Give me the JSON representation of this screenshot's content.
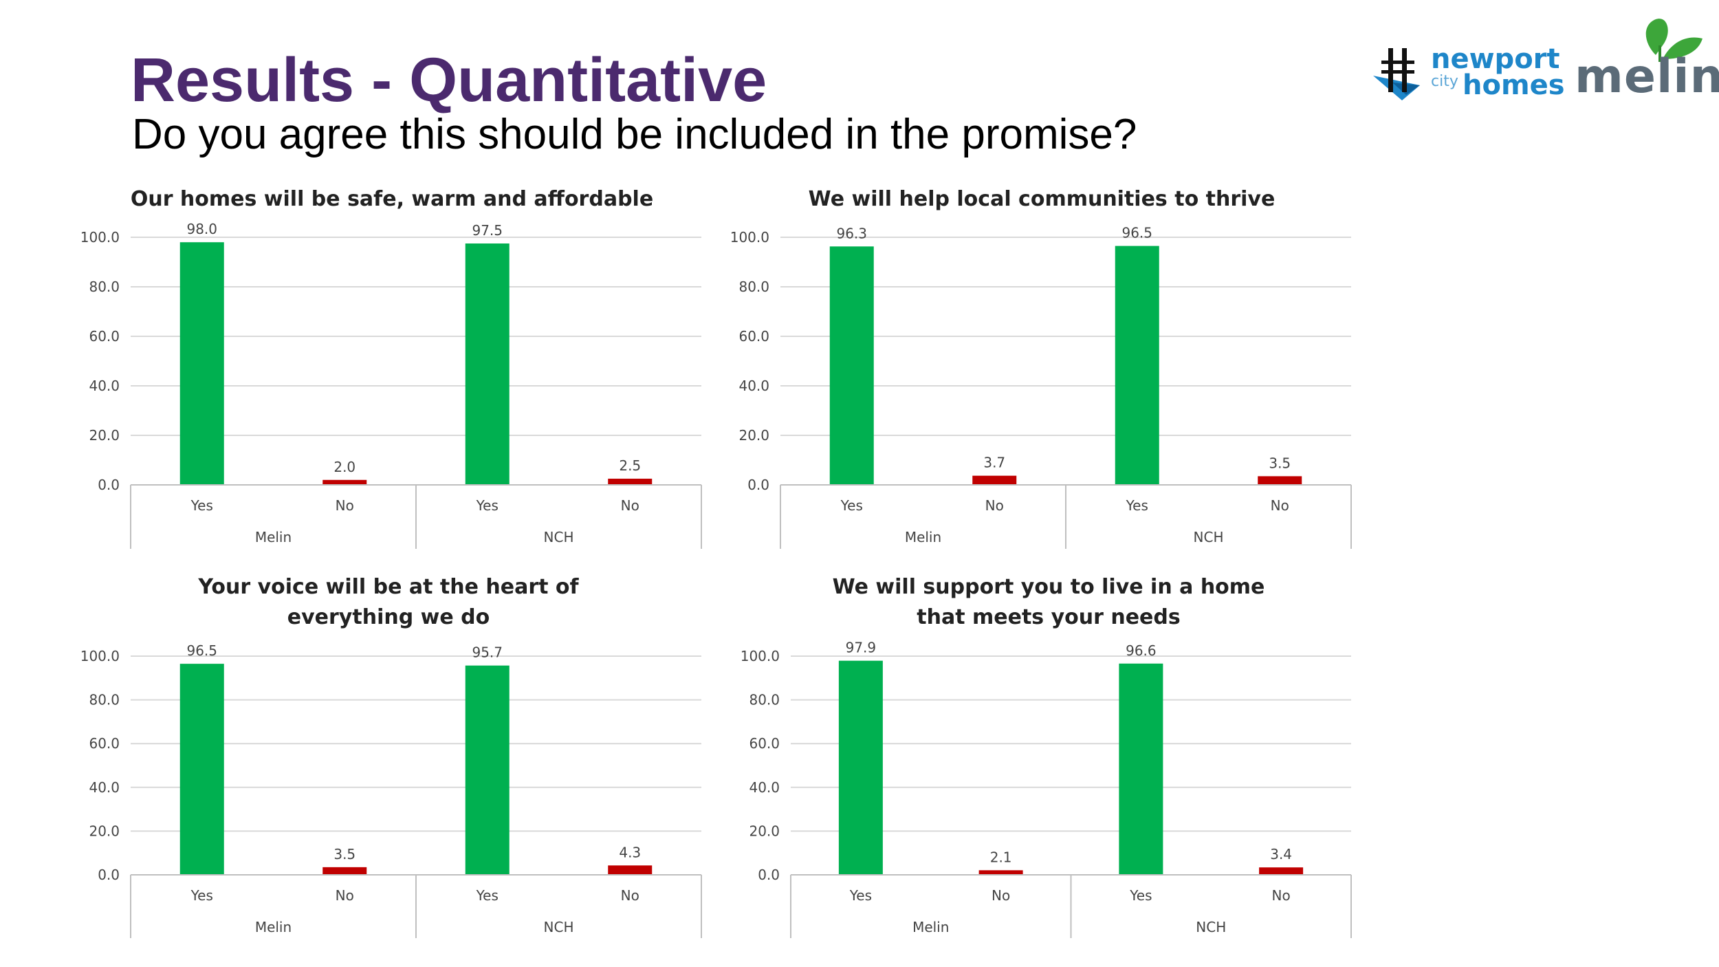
{
  "header": {
    "title": "Results - Quantitative",
    "subtitle": "Do you agree this should be included in the promise?"
  },
  "logos": {
    "nch": {
      "line1": "newport",
      "small": "city",
      "line2": "homes",
      "color": "#1e86c9"
    },
    "melin": {
      "text": "melin",
      "text_color": "#5b6b78",
      "leaf_color": "#3da63a"
    }
  },
  "colors": {
    "yes": "#00b050",
    "no": "#c00000",
    "grid": "#d9d9d9",
    "axis": "#bfbfbf"
  },
  "chart_data": [
    {
      "type": "bar",
      "title": "Our homes will be safe, warm and affordable",
      "groups": [
        "Melin",
        "NCH"
      ],
      "categories": [
        "Yes",
        "No",
        "Yes",
        "No"
      ],
      "values": [
        98.0,
        2.0,
        97.5,
        2.5
      ],
      "value_labels": [
        "98.0",
        "2.0",
        "97.5",
        "2.5"
      ],
      "yticks": [
        "0.0",
        "20.0",
        "40.0",
        "60.0",
        "80.0",
        "100.0"
      ],
      "ylim": [
        0,
        100
      ],
      "grid": true,
      "legend": "none"
    },
    {
      "type": "bar",
      "title": "We will help local communities to thrive",
      "groups": [
        "Melin",
        "NCH"
      ],
      "categories": [
        "Yes",
        "No",
        "Yes",
        "No"
      ],
      "values": [
        96.3,
        3.7,
        96.5,
        3.5
      ],
      "value_labels": [
        "96.3",
        "3.7",
        "96.5",
        "3.5"
      ],
      "yticks": [
        "0.0",
        "20.0",
        "40.0",
        "60.0",
        "80.0",
        "100.0"
      ],
      "ylim": [
        0,
        100
      ],
      "grid": true,
      "legend": "none"
    },
    {
      "type": "bar",
      "title": "Your voice will be at the heart of everything we do",
      "groups": [
        "Melin",
        "NCH"
      ],
      "categories": [
        "Yes",
        "No",
        "Yes",
        "No"
      ],
      "values": [
        96.5,
        3.5,
        95.7,
        4.3
      ],
      "value_labels": [
        "96.5",
        "3.5",
        "95.7",
        "4.3"
      ],
      "yticks": [
        "0.0",
        "20.0",
        "40.0",
        "60.0",
        "80.0",
        "100.0"
      ],
      "ylim": [
        0,
        100
      ],
      "grid": true,
      "legend": "none"
    },
    {
      "type": "bar",
      "title": "We will support you to live in a home that meets your needs",
      "groups": [
        "Melin",
        "NCH"
      ],
      "categories": [
        "Yes",
        "No",
        "Yes",
        "No"
      ],
      "values": [
        97.9,
        2.1,
        96.6,
        3.4
      ],
      "value_labels": [
        "97.9",
        "2.1",
        "96.6",
        "3.4"
      ],
      "yticks": [
        "0.0",
        "20.0",
        "40.0",
        "60.0",
        "80.0",
        "100.0"
      ],
      "ylim": [
        0,
        100
      ],
      "grid": true,
      "legend": "none"
    }
  ]
}
